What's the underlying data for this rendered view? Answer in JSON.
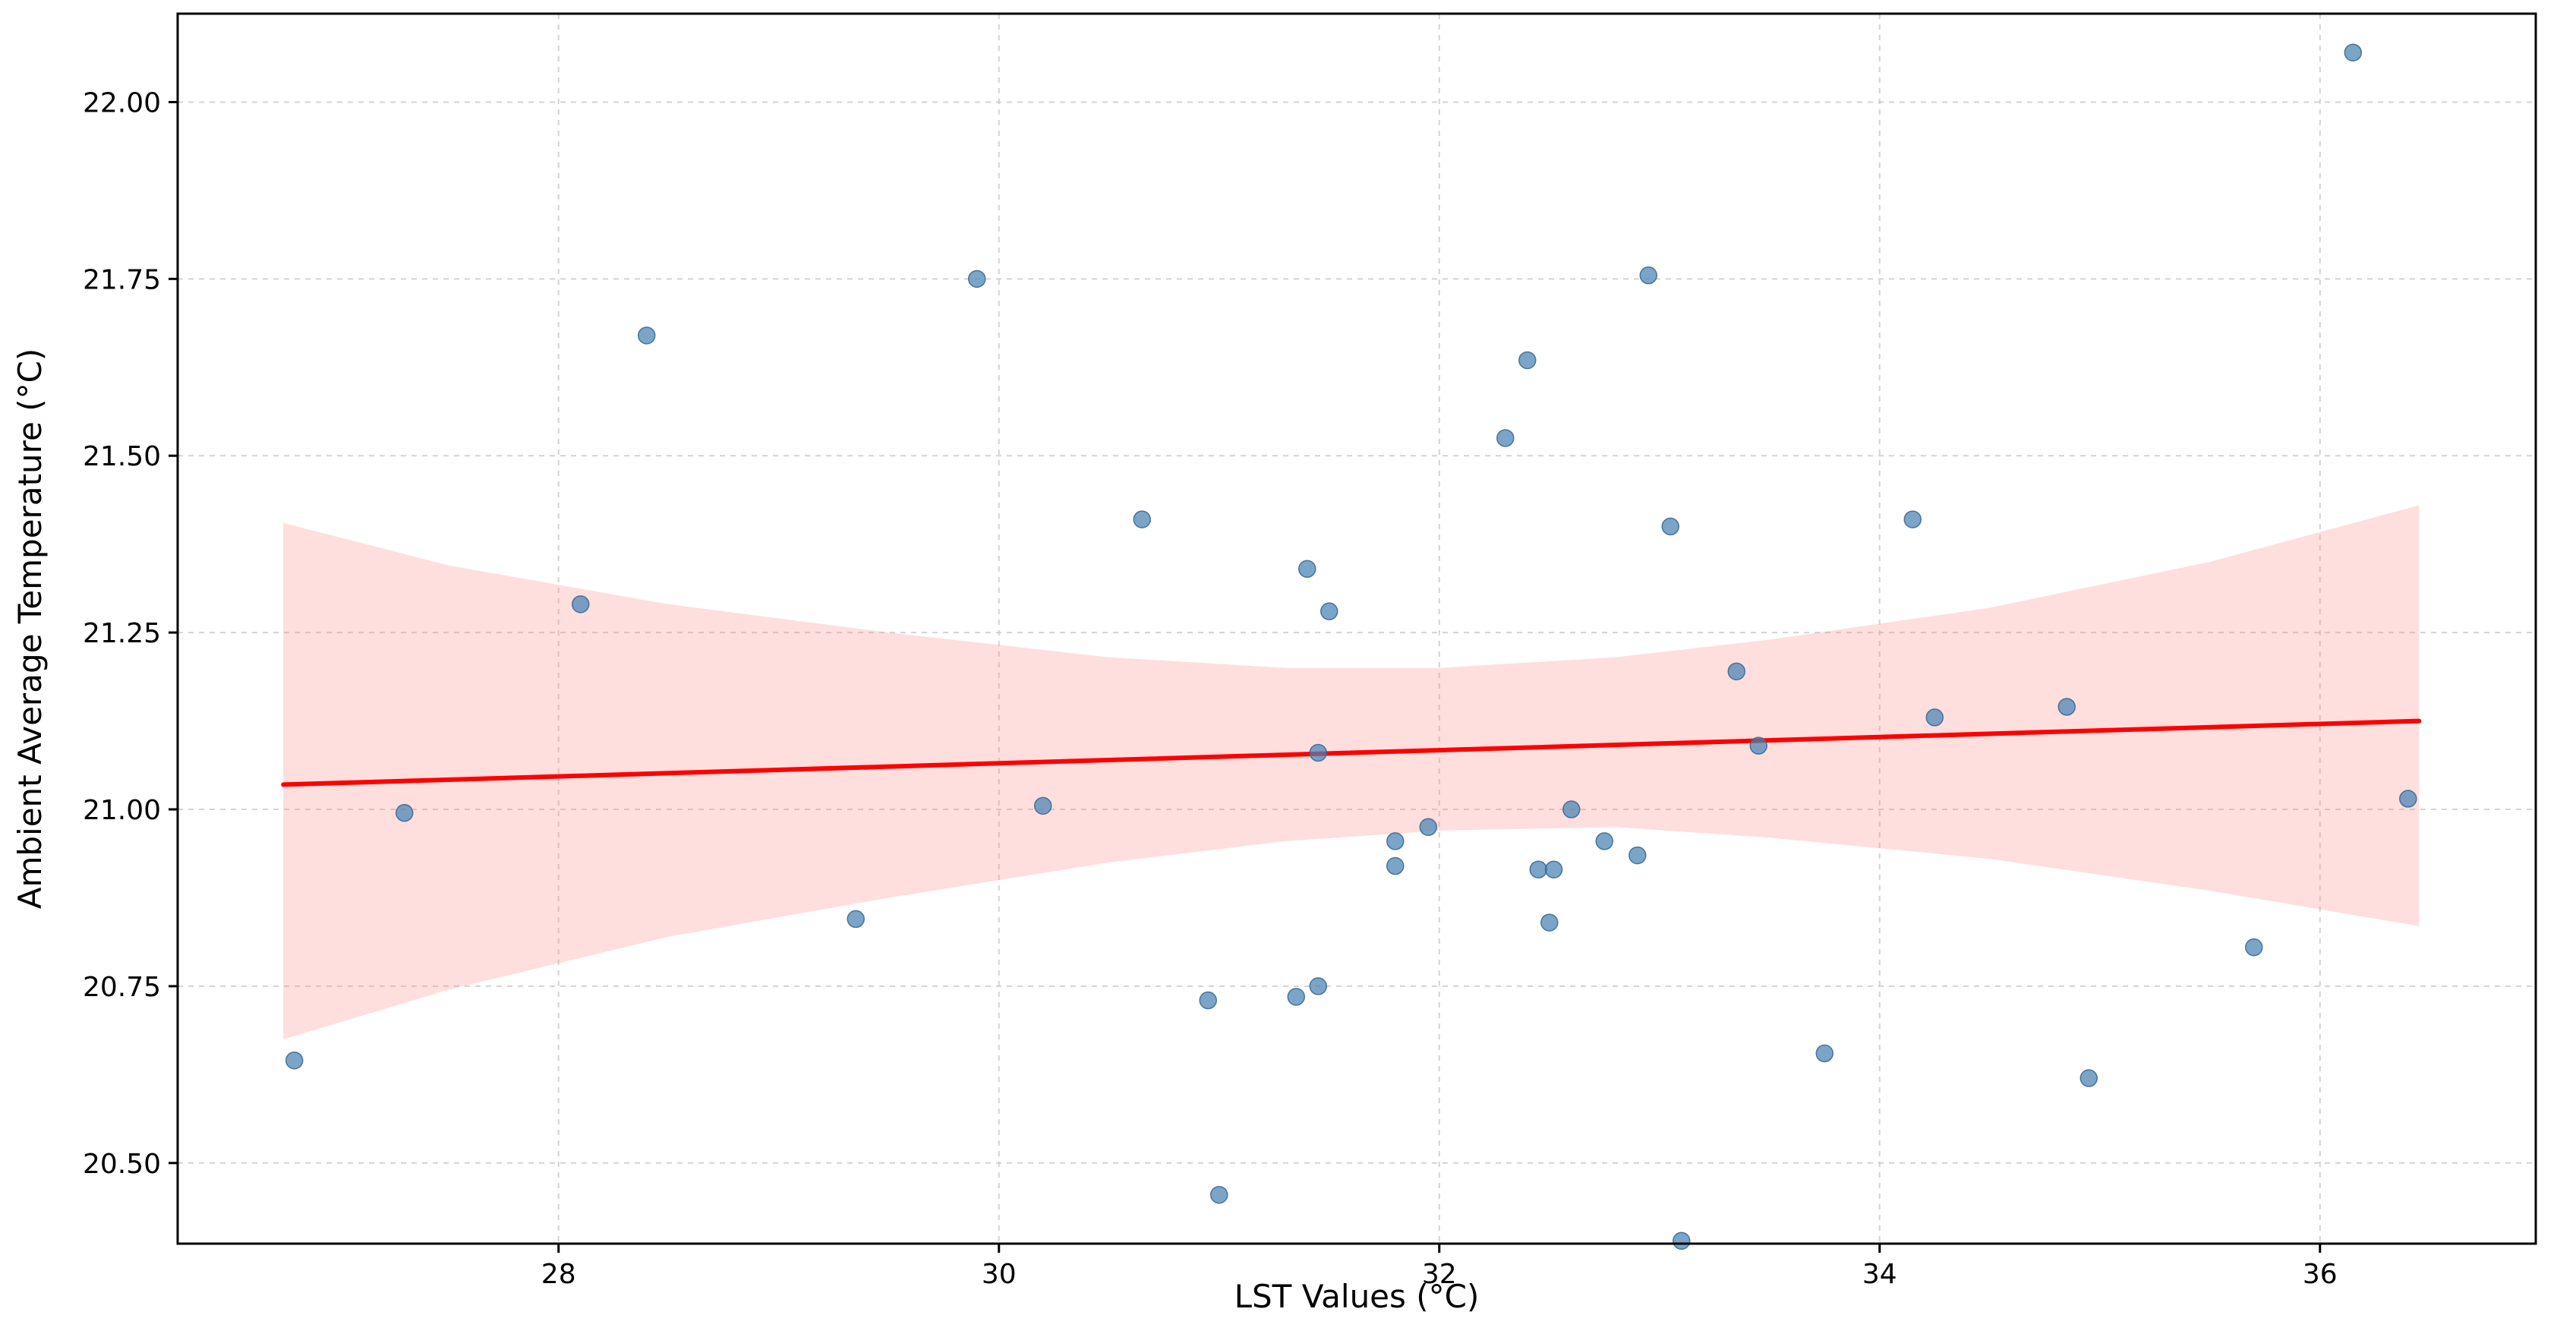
{
  "chart_data": {
    "type": "scatter",
    "title": "",
    "xlabel": "LST Values (°C)",
    "ylabel": "Ambient Average Temperature (°C)",
    "xlim": [
      26.27,
      36.98
    ],
    "ylim": [
      20.386,
      22.125
    ],
    "xticks": [
      28,
      30,
      32,
      34,
      36
    ],
    "xtick_labels": [
      "28",
      "30",
      "32",
      "34",
      "36"
    ],
    "yticks": [
      20.5,
      20.75,
      21.0,
      21.25,
      21.5,
      21.75,
      22.0
    ],
    "ytick_labels": [
      "20.50",
      "20.75",
      "21.00",
      "21.25",
      "21.50",
      "21.75",
      "22.00"
    ],
    "grid": true,
    "legend": "none",
    "points": [
      [
        26.8,
        20.645
      ],
      [
        27.3,
        20.995
      ],
      [
        28.1,
        21.29
      ],
      [
        28.4,
        21.67
      ],
      [
        29.35,
        20.845
      ],
      [
        29.9,
        21.75
      ],
      [
        30.2,
        21.005
      ],
      [
        30.65,
        21.41
      ],
      [
        30.95,
        20.73
      ],
      [
        31.0,
        20.455
      ],
      [
        31.35,
        20.735
      ],
      [
        31.45,
        20.75
      ],
      [
        31.4,
        21.34
      ],
      [
        31.5,
        21.28
      ],
      [
        31.45,
        21.08
      ],
      [
        31.8,
        20.955
      ],
      [
        31.8,
        20.92
      ],
      [
        31.95,
        20.975
      ],
      [
        32.3,
        21.525
      ],
      [
        32.4,
        21.635
      ],
      [
        32.45,
        20.915
      ],
      [
        32.52,
        20.915
      ],
      [
        32.5,
        20.84
      ],
      [
        32.6,
        21.0
      ],
      [
        32.75,
        20.955
      ],
      [
        32.9,
        20.935
      ],
      [
        32.95,
        21.755
      ],
      [
        33.05,
        21.4
      ],
      [
        33.1,
        20.39
      ],
      [
        33.35,
        21.195
      ],
      [
        33.45,
        21.09
      ],
      [
        33.75,
        20.655
      ],
      [
        34.15,
        21.41
      ],
      [
        34.25,
        21.13
      ],
      [
        34.85,
        21.145
      ],
      [
        34.95,
        20.62
      ],
      [
        35.7,
        20.805
      ],
      [
        36.15,
        22.07
      ],
      [
        36.4,
        21.015
      ]
    ],
    "regression_line": {
      "x": [
        26.75,
        36.45
      ],
      "y": [
        21.035,
        21.125
      ],
      "color": "#ff0000"
    },
    "confidence_band": {
      "x": [
        26.75,
        27.5,
        28.5,
        29.5,
        30.5,
        31.3,
        32.0,
        32.8,
        33.5,
        34.5,
        35.5,
        36.45
      ],
      "upper": [
        21.405,
        21.345,
        21.29,
        21.25,
        21.215,
        21.2,
        21.2,
        21.215,
        21.24,
        21.285,
        21.35,
        21.43
      ],
      "lower": [
        20.675,
        20.745,
        20.82,
        20.875,
        20.925,
        20.955,
        20.97,
        20.975,
        20.96,
        20.93,
        20.885,
        20.835
      ],
      "color": "#ff8a8a",
      "opacity": 0.28
    },
    "style": {
      "point_color": "#4682b4",
      "point_edge_color": "#36648b",
      "point_opacity": 0.72,
      "point_radius": 11,
      "grid_color": "#c9c9c9",
      "background_color": "#ffffff",
      "spine_color": "#000000"
    }
  }
}
